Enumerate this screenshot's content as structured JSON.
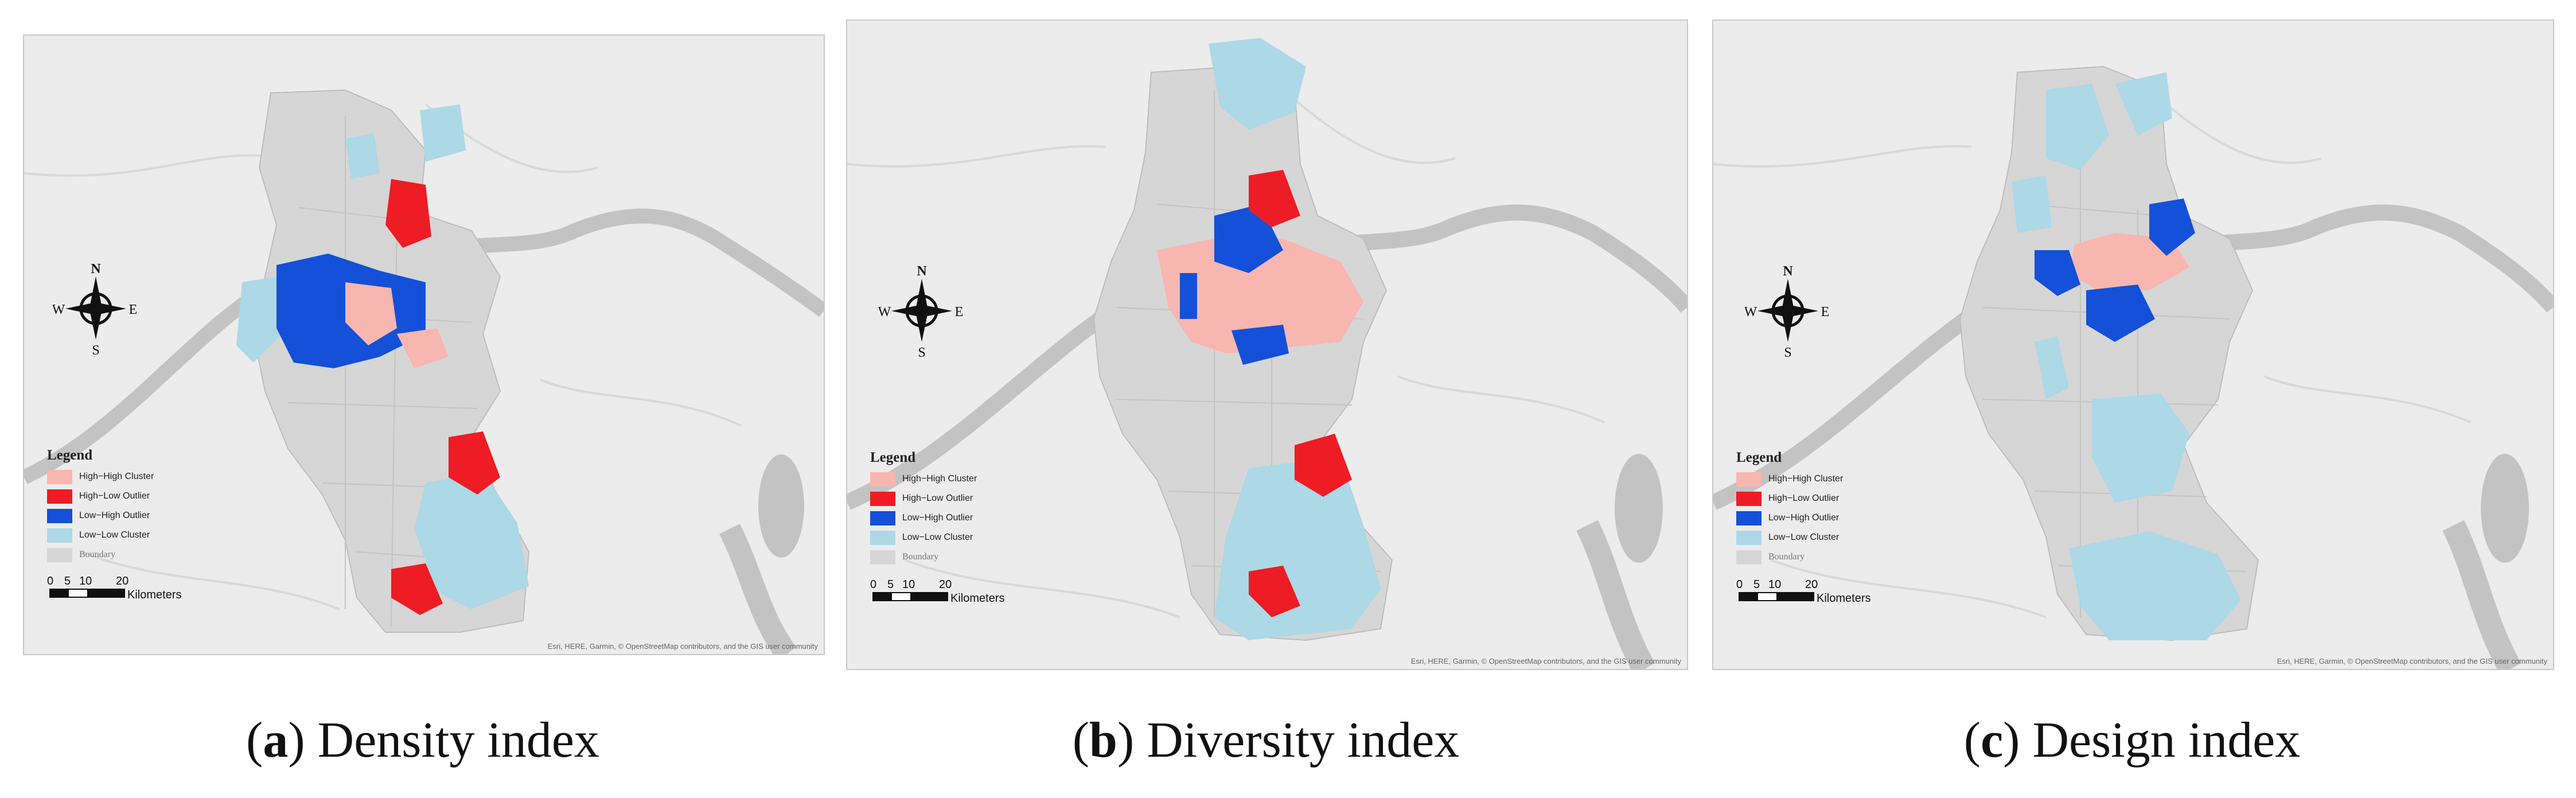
{
  "legend": {
    "title": "Legend",
    "items": [
      {
        "label": "High−High Cluster",
        "color": "#f7b6b0"
      },
      {
        "label": "High−Low Outlier",
        "color": "#ee1c24"
      },
      {
        "label": "Low−High Outlier",
        "color": "#1450d8"
      },
      {
        "label": "Low−Low Cluster",
        "color": "#add8e6"
      },
      {
        "label": "Boundary",
        "color": "#d6d6d6"
      }
    ]
  },
  "scale": {
    "ticks": [
      "0",
      "5",
      "10",
      "20"
    ],
    "unit": "Kilometers"
  },
  "compass": {
    "n": "N",
    "s": "S",
    "e": "E",
    "w": "W"
  },
  "attribution": "Esri, HERE, Garmin, © OpenStreetMap contributors, and the GIS user community",
  "panels": [
    {
      "letter": "a",
      "title": "Density index"
    },
    {
      "letter": "b",
      "title": "Diversity index"
    },
    {
      "letter": "c",
      "title": "Design index"
    }
  ],
  "colors": {
    "background": "#ececec",
    "river": "#c3c3c3",
    "boundary": "#d6d6d6",
    "boundary_line": "#bdbdbd"
  }
}
